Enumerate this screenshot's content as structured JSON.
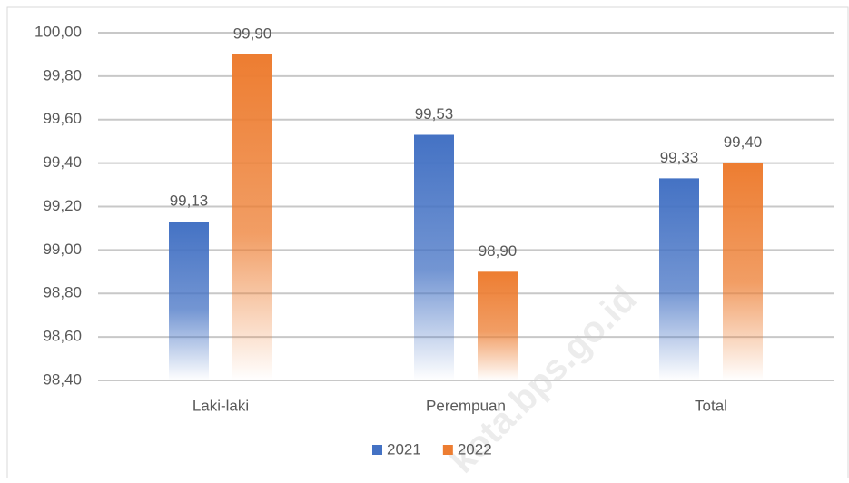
{
  "chart_data": {
    "type": "bar",
    "categories": [
      "Laki-laki",
      "Perempuan",
      "Total"
    ],
    "series": [
      {
        "name": "2021",
        "color": "#4472c4",
        "values": [
          99.13,
          99.53,
          99.33
        ],
        "value_labels": [
          "99,13",
          "99,53",
          "99,33"
        ]
      },
      {
        "name": "2022",
        "color": "#ed7d31",
        "values": [
          99.9,
          98.9,
          99.4
        ],
        "value_labels": [
          "99,90",
          "98,90",
          "99,40"
        ]
      }
    ],
    "ylim": [
      98.4,
      100.0
    ],
    "yticks": [
      {
        "value": 98.4,
        "label": "98,40"
      },
      {
        "value": 98.6,
        "label": "98,60"
      },
      {
        "value": 98.8,
        "label": "98,80"
      },
      {
        "value": 99.0,
        "label": "99,00"
      },
      {
        "value": 99.2,
        "label": "99,20"
      },
      {
        "value": 99.4,
        "label": "99,40"
      },
      {
        "value": 99.6,
        "label": "99,60"
      },
      {
        "value": 99.8,
        "label": "99,80"
      },
      {
        "value": 100.0,
        "label": "100,00"
      }
    ],
    "grid": true,
    "legend": "bottom",
    "watermark": "kota.bps.go.id"
  }
}
